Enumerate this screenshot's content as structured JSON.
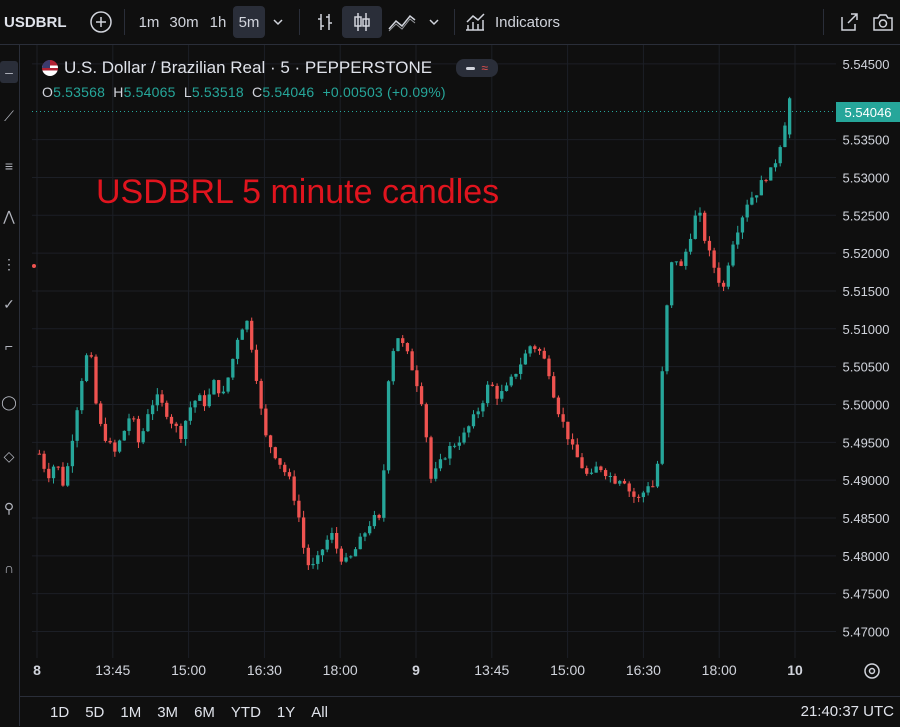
{
  "toolbar": {
    "symbol": "USDBRL",
    "intervals": [
      "1m",
      "30m",
      "1h",
      "5m"
    ],
    "active_interval": "5m",
    "indicators_label": "Indicators"
  },
  "legend": {
    "title": "U.S. Dollar / Brazilian Real · 5 · PEPPERSTONE",
    "o_label": "O",
    "o_value": "5.53568",
    "h_label": "H",
    "h_value": "5.54065",
    "l_label": "L",
    "l_value": "5.53518",
    "c_label": "C",
    "c_value": "5.54046",
    "change": "+0.00503 (+0.09%)"
  },
  "annotation": "USDBRL 5 minute candles",
  "price_axis": {
    "ticks": [
      "5.54500",
      "5.53500",
      "5.53000",
      "5.52500",
      "5.52000",
      "5.51500",
      "5.51000",
      "5.50500",
      "5.50000",
      "5.49500",
      "5.49000",
      "5.48500",
      "5.48000",
      "5.47500",
      "5.47000"
    ],
    "last_price": "5.54046",
    "last_price_color": "#26a69a"
  },
  "time_axis": {
    "labels": [
      "8",
      "13:45",
      "15:00",
      "16:30",
      "18:00",
      "9",
      "13:45",
      "15:00",
      "16:30",
      "18:00",
      "10"
    ]
  },
  "range_buttons": [
    "1D",
    "5D",
    "1M",
    "3M",
    "6M",
    "YTD",
    "1Y",
    "All"
  ],
  "clock": "21:40:37 UTC",
  "colors": {
    "up": "#26a69a",
    "down": "#ef5350",
    "background": "#0f0f0f",
    "grid": "#1c1f26",
    "annotation": "#e0141e"
  },
  "chart_data": {
    "type": "candlestick",
    "title": "",
    "xlabel": "",
    "ylabel": "",
    "ylim": [
      5.4665,
      5.5475
    ],
    "x": [
      "8",
      "13:45",
      "15:00",
      "16:30",
      "18:00",
      "9",
      "13:45",
      "15:00",
      "16:30",
      "18:00",
      "10"
    ],
    "close_path": [
      5.4935,
      5.4905,
      5.4925,
      5.489,
      5.496,
      5.503,
      5.508,
      5.498,
      5.4955,
      5.4935,
      5.496,
      5.499,
      5.4945,
      5.499,
      5.501,
      5.4995,
      5.4975,
      5.496,
      5.4995,
      5.501,
      5.5,
      5.503,
      5.501,
      5.505,
      5.51,
      5.511,
      5.504,
      5.496,
      5.494,
      5.492,
      5.49,
      5.486,
      5.479,
      5.4785,
      5.481,
      5.483,
      5.48,
      5.479,
      5.481,
      5.483,
      5.485,
      5.4845,
      5.506,
      5.509,
      5.507,
      5.504,
      5.5,
      5.49,
      5.492,
      5.494,
      5.495,
      5.496,
      5.498,
      5.5,
      5.503,
      5.501,
      5.502,
      5.504,
      5.506,
      5.508,
      5.507,
      5.505,
      5.5,
      5.497,
      5.494,
      5.492,
      5.49,
      5.492,
      5.491,
      5.49,
      5.4905,
      5.488,
      5.4875,
      5.4895,
      5.489,
      5.51,
      5.52,
      5.518,
      5.522,
      5.526,
      5.521,
      5.518,
      5.515,
      5.521,
      5.524,
      5.527,
      5.528,
      5.53,
      5.531,
      5.535,
      5.5404
    ],
    "last": {
      "open": 5.53568,
      "high": 5.54065,
      "low": 5.53518,
      "close": 5.54046
    }
  }
}
